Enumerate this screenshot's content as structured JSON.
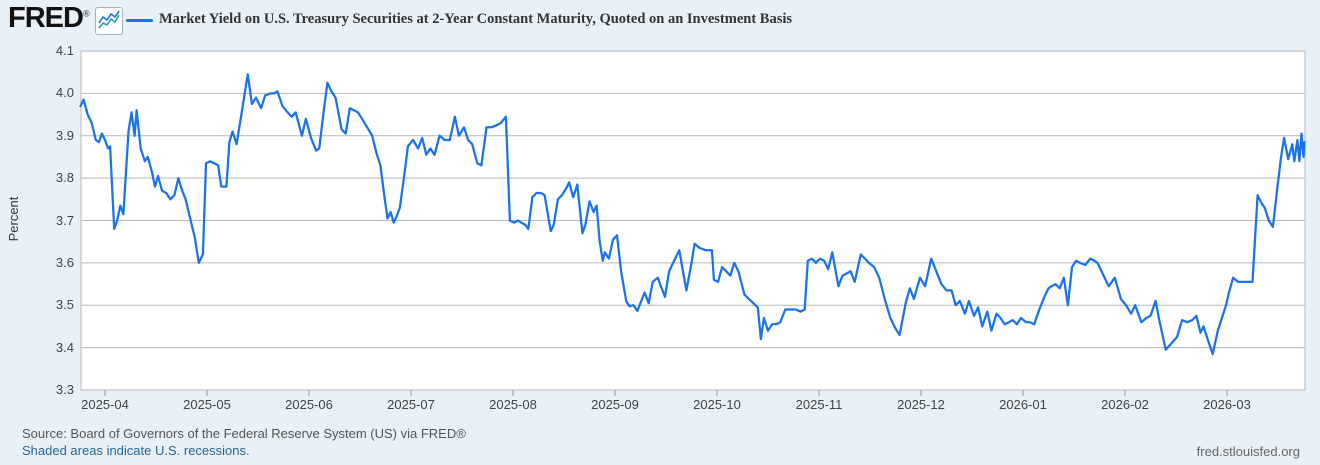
{
  "header": {
    "logo_text": "FRED",
    "registered_mark": "®",
    "legend_label": "Market Yield on U.S. Treasury Securities at 2-Year Constant Maturity, Quoted on an Investment Basis"
  },
  "colors": {
    "background": "#e8f1f8",
    "plot_background": "#ffffff",
    "gridline": "#b8b8b8",
    "series_line": "#1a73e8",
    "logo_icon_line_blue": "#1a73e8",
    "logo_icon_line_teal": "#27a39b",
    "link_blue": "#2a6496"
  },
  "chart_data": {
    "type": "line",
    "title": "Market Yield on U.S. Treasury Securities at 2-Year Constant Maturity, Quoted on an Investment Basis",
    "xlabel": "",
    "ylabel": "Percent",
    "ylim": [
      3.3,
      4.1
    ],
    "grid": true,
    "legend_position": "top-left",
    "y_tick_labels": [
      "4.1",
      "4.0",
      "3.9",
      "3.8",
      "3.7",
      "3.6",
      "3.5",
      "3.4",
      "3.3"
    ],
    "y_tick_values": [
      4.1,
      4.0,
      3.9,
      3.8,
      3.7,
      3.6,
      3.5,
      3.4,
      3.3
    ],
    "x_tick_labels": [
      "2025-04",
      "2025-05",
      "2025-06",
      "2025-07",
      "2025-08",
      "2025-09",
      "2025-10",
      "2025-11",
      "2025-12",
      "2026-01",
      "2026-02",
      "2026-03"
    ],
    "x_unit_note": "t = months after the 2025-04 axis tick (daily observations)",
    "series": [
      {
        "name": "Market Yield on U.S. Treasury Securities at 2-Year Constant Maturity, Quoted on an Investment Basis",
        "color": "#1a73e8",
        "points": [
          [
            -0.24,
            3.97
          ],
          [
            -0.21,
            3.985
          ],
          [
            -0.17,
            3.95
          ],
          [
            -0.13,
            3.93
          ],
          [
            -0.09,
            3.89
          ],
          [
            -0.06,
            3.885
          ],
          [
            -0.03,
            3.905
          ],
          [
            0,
            3.89
          ],
          [
            0.03,
            3.87
          ],
          [
            0.05,
            3.875
          ],
          [
            0.09,
            3.68
          ],
          [
            0.12,
            3.7
          ],
          [
            0.15,
            3.735
          ],
          [
            0.18,
            3.715
          ],
          [
            0.23,
            3.91
          ],
          [
            0.26,
            3.955
          ],
          [
            0.29,
            3.9
          ],
          [
            0.31,
            3.96
          ],
          [
            0.35,
            3.87
          ],
          [
            0.39,
            3.84
          ],
          [
            0.42,
            3.85
          ],
          [
            0.46,
            3.815
          ],
          [
            0.49,
            3.78
          ],
          [
            0.52,
            3.805
          ],
          [
            0.56,
            3.77
          ],
          [
            0.6,
            3.765
          ],
          [
            0.64,
            3.75
          ],
          [
            0.68,
            3.76
          ],
          [
            0.72,
            3.8
          ],
          [
            0.75,
            3.775
          ],
          [
            0.79,
            3.75
          ],
          [
            0.84,
            3.7
          ],
          [
            0.88,
            3.66
          ],
          [
            0.92,
            3.6
          ],
          [
            0.96,
            3.62
          ],
          [
            0.99,
            3.835
          ],
          [
            1.03,
            3.84
          ],
          [
            1.07,
            3.835
          ],
          [
            1.11,
            3.83
          ],
          [
            1.14,
            3.78
          ],
          [
            1.19,
            3.78
          ],
          [
            1.22,
            3.885
          ],
          [
            1.25,
            3.91
          ],
          [
            1.29,
            3.88
          ],
          [
            1.33,
            3.94
          ],
          [
            1.37,
            4.0
          ],
          [
            1.4,
            4.045
          ],
          [
            1.44,
            3.975
          ],
          [
            1.48,
            3.99
          ],
          [
            1.53,
            3.965
          ],
          [
            1.57,
            3.995
          ],
          [
            1.62,
            4.0
          ],
          [
            1.66,
            4.0
          ],
          [
            1.69,
            4.005
          ],
          [
            1.74,
            3.97
          ],
          [
            1.79,
            3.955
          ],
          [
            1.83,
            3.945
          ],
          [
            1.87,
            3.955
          ],
          [
            1.93,
            3.9
          ],
          [
            1.97,
            3.94
          ],
          [
            2.02,
            3.895
          ],
          [
            2.07,
            3.865
          ],
          [
            2.1,
            3.87
          ],
          [
            2.14,
            3.95
          ],
          [
            2.18,
            4.025
          ],
          [
            2.22,
            4.005
          ],
          [
            2.26,
            3.99
          ],
          [
            2.32,
            3.915
          ],
          [
            2.36,
            3.905
          ],
          [
            2.4,
            3.965
          ],
          [
            2.44,
            3.96
          ],
          [
            2.48,
            3.955
          ],
          [
            2.52,
            3.94
          ],
          [
            2.62,
            3.9
          ],
          [
            2.66,
            3.86
          ],
          [
            2.7,
            3.83
          ],
          [
            2.74,
            3.755
          ],
          [
            2.77,
            3.705
          ],
          [
            2.8,
            3.72
          ],
          [
            2.83,
            3.695
          ],
          [
            2.86,
            3.71
          ],
          [
            2.89,
            3.73
          ],
          [
            2.93,
            3.8
          ],
          [
            2.97,
            3.875
          ],
          [
            3.02,
            3.89
          ],
          [
            3.07,
            3.87
          ],
          [
            3.11,
            3.895
          ],
          [
            3.15,
            3.855
          ],
          [
            3.19,
            3.87
          ],
          [
            3.23,
            3.855
          ],
          [
            3.28,
            3.9
          ],
          [
            3.33,
            3.89
          ],
          [
            3.38,
            3.89
          ],
          [
            3.43,
            3.945
          ],
          [
            3.47,
            3.9
          ],
          [
            3.52,
            3.92
          ],
          [
            3.56,
            3.89
          ],
          [
            3.6,
            3.88
          ],
          [
            3.65,
            3.835
          ],
          [
            3.69,
            3.83
          ],
          [
            3.74,
            3.92
          ],
          [
            3.79,
            3.92
          ],
          [
            3.84,
            3.925
          ],
          [
            3.88,
            3.93
          ],
          [
            3.93,
            3.945
          ],
          [
            3.97,
            3.7
          ],
          [
            4.01,
            3.695
          ],
          [
            4.05,
            3.7
          ],
          [
            4.08,
            3.695
          ],
          [
            4.12,
            3.69
          ],
          [
            4.15,
            3.68
          ],
          [
            4.19,
            3.755
          ],
          [
            4.23,
            3.765
          ],
          [
            4.27,
            3.765
          ],
          [
            4.31,
            3.76
          ],
          [
            4.37,
            3.675
          ],
          [
            4.4,
            3.69
          ],
          [
            4.44,
            3.75
          ],
          [
            4.48,
            3.76
          ],
          [
            4.52,
            3.775
          ],
          [
            4.55,
            3.79
          ],
          [
            4.59,
            3.755
          ],
          [
            4.63,
            3.785
          ],
          [
            4.68,
            3.67
          ],
          [
            4.71,
            3.69
          ],
          [
            4.75,
            3.745
          ],
          [
            4.79,
            3.72
          ],
          [
            4.82,
            3.735
          ],
          [
            4.85,
            3.65
          ],
          [
            4.88,
            3.605
          ],
          [
            4.9,
            3.625
          ],
          [
            4.94,
            3.61
          ],
          [
            4.98,
            3.655
          ],
          [
            5.02,
            3.665
          ],
          [
            5.06,
            3.58
          ],
          [
            5.11,
            3.51
          ],
          [
            5.14,
            3.498
          ],
          [
            5.18,
            3.5
          ],
          [
            5.22,
            3.487
          ],
          [
            5.29,
            3.53
          ],
          [
            5.33,
            3.505
          ],
          [
            5.37,
            3.555
          ],
          [
            5.42,
            3.565
          ],
          [
            5.45,
            3.545
          ],
          [
            5.49,
            3.52
          ],
          [
            5.53,
            3.58
          ],
          [
            5.57,
            3.6
          ],
          [
            5.63,
            3.63
          ],
          [
            5.67,
            3.575
          ],
          [
            5.7,
            3.535
          ],
          [
            5.75,
            3.6
          ],
          [
            5.78,
            3.645
          ],
          [
            5.83,
            3.635
          ],
          [
            5.89,
            3.63
          ],
          [
            5.95,
            3.63
          ],
          [
            5.97,
            3.56
          ],
          [
            6.01,
            3.555
          ],
          [
            6.05,
            3.59
          ],
          [
            6.09,
            3.58
          ],
          [
            6.13,
            3.57
          ],
          [
            6.17,
            3.6
          ],
          [
            6.21,
            3.58
          ],
          [
            6.27,
            3.525
          ],
          [
            6.4,
            3.495
          ],
          [
            6.43,
            3.42
          ],
          [
            6.46,
            3.47
          ],
          [
            6.5,
            3.44
          ],
          [
            6.54,
            3.455
          ],
          [
            6.58,
            3.455
          ],
          [
            6.62,
            3.46
          ],
          [
            6.67,
            3.49
          ],
          [
            6.72,
            3.49
          ],
          [
            6.77,
            3.49
          ],
          [
            6.82,
            3.485
          ],
          [
            6.86,
            3.49
          ],
          [
            6.89,
            3.605
          ],
          [
            6.93,
            3.61
          ],
          [
            6.97,
            3.6
          ],
          [
            7.01,
            3.61
          ],
          [
            7.05,
            3.605
          ],
          [
            7.09,
            3.585
          ],
          [
            7.13,
            3.625
          ],
          [
            7.19,
            3.545
          ],
          [
            7.23,
            3.57
          ],
          [
            7.27,
            3.575
          ],
          [
            7.31,
            3.58
          ],
          [
            7.35,
            3.555
          ],
          [
            7.41,
            3.62
          ],
          [
            7.45,
            3.61
          ],
          [
            7.49,
            3.6
          ],
          [
            7.54,
            3.59
          ],
          [
            7.59,
            3.565
          ],
          [
            7.65,
            3.51
          ],
          [
            7.7,
            3.47
          ],
          [
            7.75,
            3.445
          ],
          [
            7.79,
            3.43
          ],
          [
            7.85,
            3.505
          ],
          [
            7.89,
            3.54
          ],
          [
            7.93,
            3.515
          ],
          [
            7.99,
            3.565
          ],
          [
            8.04,
            3.545
          ],
          [
            8.1,
            3.61
          ],
          [
            8.15,
            3.58
          ],
          [
            8.2,
            3.55
          ],
          [
            8.25,
            3.535
          ],
          [
            8.3,
            3.535
          ],
          [
            8.34,
            3.5
          ],
          [
            8.38,
            3.51
          ],
          [
            8.43,
            3.48
          ],
          [
            8.47,
            3.51
          ],
          [
            8.52,
            3.475
          ],
          [
            8.56,
            3.495
          ],
          [
            8.6,
            3.45
          ],
          [
            8.65,
            3.485
          ],
          [
            8.69,
            3.44
          ],
          [
            8.74,
            3.48
          ],
          [
            8.78,
            3.47
          ],
          [
            8.82,
            3.455
          ],
          [
            8.86,
            3.46
          ],
          [
            8.9,
            3.465
          ],
          [
            8.94,
            3.455
          ],
          [
            8.98,
            3.47
          ],
          [
            9.03,
            3.46
          ],
          [
            9.07,
            3.46
          ],
          [
            9.11,
            3.455
          ],
          [
            9.16,
            3.49
          ],
          [
            9.21,
            3.52
          ],
          [
            9.25,
            3.54
          ],
          [
            9.28,
            3.545
          ],
          [
            9.32,
            3.55
          ],
          [
            9.36,
            3.54
          ],
          [
            9.4,
            3.565
          ],
          [
            9.44,
            3.5
          ],
          [
            9.48,
            3.59
          ],
          [
            9.52,
            3.605
          ],
          [
            9.56,
            3.6
          ],
          [
            9.61,
            3.595
          ],
          [
            9.66,
            3.61
          ],
          [
            9.7,
            3.605
          ],
          [
            9.73,
            3.6
          ],
          [
            9.79,
            3.57
          ],
          [
            9.84,
            3.545
          ],
          [
            9.9,
            3.565
          ],
          [
            9.96,
            3.515
          ],
          [
            10.01,
            3.5
          ],
          [
            10.06,
            3.48
          ],
          [
            10.1,
            3.5
          ],
          [
            10.16,
            3.46
          ],
          [
            10.21,
            3.47
          ],
          [
            10.25,
            3.475
          ],
          [
            10.3,
            3.51
          ],
          [
            10.34,
            3.46
          ],
          [
            10.4,
            3.395
          ],
          [
            10.51,
            3.425
          ],
          [
            10.56,
            3.465
          ],
          [
            10.61,
            3.46
          ],
          [
            10.66,
            3.465
          ],
          [
            10.7,
            3.475
          ],
          [
            10.74,
            3.435
          ],
          [
            10.77,
            3.45
          ],
          [
            10.81,
            3.42
          ],
          [
            10.86,
            3.385
          ],
          [
            10.91,
            3.44
          ],
          [
            10.95,
            3.47
          ],
          [
            10.99,
            3.5
          ],
          [
            11.02,
            3.53
          ],
          [
            11.06,
            3.565
          ],
          [
            11.11,
            3.555
          ],
          [
            11.16,
            3.555
          ],
          [
            11.21,
            3.555
          ],
          [
            11.25,
            3.555
          ],
          [
            11.3,
            3.76
          ],
          [
            11.34,
            3.74
          ],
          [
            11.37,
            3.73
          ],
          [
            11.41,
            3.7
          ],
          [
            11.45,
            3.685
          ],
          [
            11.49,
            3.77
          ],
          [
            11.53,
            3.85
          ],
          [
            11.56,
            3.895
          ],
          [
            11.6,
            3.845
          ],
          [
            11.64,
            3.88
          ],
          [
            11.66,
            3.84
          ],
          [
            11.69,
            3.89
          ],
          [
            11.71,
            3.84
          ],
          [
            11.73,
            3.905
          ],
          [
            11.75,
            3.85
          ],
          [
            11.76,
            3.885
          ]
        ]
      }
    ]
  },
  "footer": {
    "source": "Source: Board of Governors of the Federal Reserve System (US) via FRED®",
    "recession_note": "Shaded areas indicate U.S. recessions.",
    "site": "fred.stlouisfed.org"
  }
}
